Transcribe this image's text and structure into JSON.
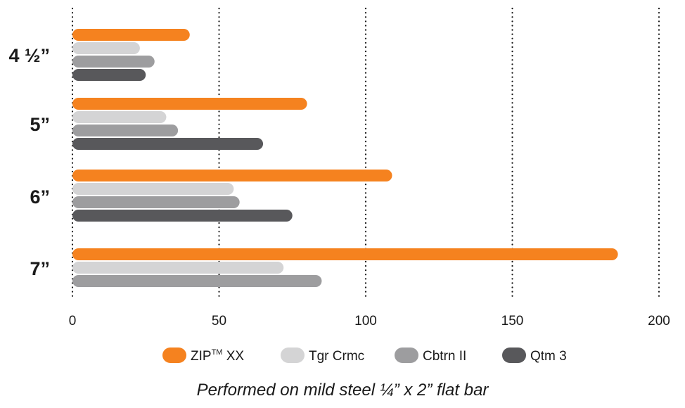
{
  "chart_data": {
    "type": "bar",
    "orientation": "horizontal",
    "categories": [
      "4 ½”",
      "5”",
      "6”",
      "7”"
    ],
    "series": [
      {
        "name": "ZIP",
        "name_sup": "TM",
        "name_suffix": " XX",
        "color": "#f5821f",
        "values": [
          40,
          80,
          109,
          186
        ]
      },
      {
        "name": "Tgr Crmc",
        "color": "#d4d4d5",
        "values": [
          23,
          32,
          55,
          72
        ]
      },
      {
        "name": "Cbtrn II",
        "color": "#9d9d9f",
        "values": [
          28,
          36,
          57,
          85
        ]
      },
      {
        "name": "Qtm 3",
        "color": "#58585b",
        "values": [
          25,
          65,
          75,
          null
        ]
      }
    ],
    "x_ticks": [
      "0",
      "50",
      "100",
      "150",
      "200"
    ],
    "xlim": [
      0,
      200
    ],
    "grid": "vertical dotted",
    "legend_position": "bottom",
    "caption": "Performed on mild steel ¼” x 2” flat bar"
  }
}
